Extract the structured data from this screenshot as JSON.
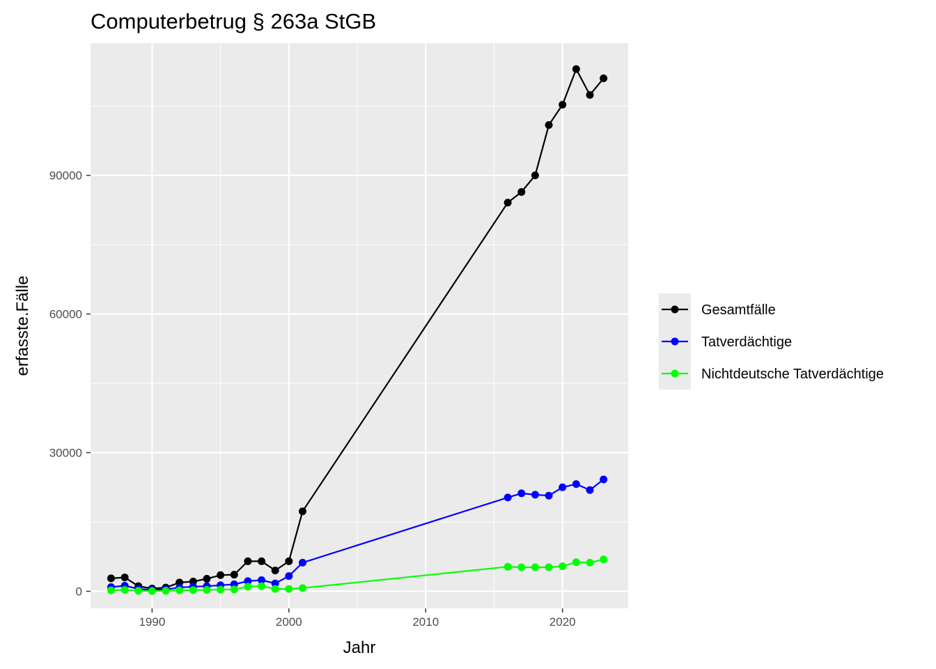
{
  "chart_data": {
    "type": "line",
    "title": "Computerbetrug § 263a StGB",
    "xlabel": "Jahr",
    "ylabel": "erfasste.Fälle",
    "xlim": [
      1985.5,
      2024.8
    ],
    "ylim": [
      -3700,
      118600
    ],
    "x_ticks": [
      1990,
      2000,
      2010,
      2020
    ],
    "x_tick_labels": [
      "1990",
      "2000",
      "2010",
      "2020"
    ],
    "y_ticks": [
      0,
      30000,
      60000,
      90000
    ],
    "y_tick_labels": [
      "0",
      "30000",
      "60000",
      "90000"
    ],
    "grid": true,
    "legend_position": "right",
    "x": [
      1987,
      1988,
      1989,
      1990,
      1991,
      1992,
      1993,
      1994,
      1995,
      1996,
      1997,
      1998,
      1999,
      2000,
      2001,
      2016,
      2017,
      2018,
      2019,
      2020,
      2021,
      2022,
      2023
    ],
    "series": [
      {
        "name": "Gesamtfälle",
        "color": "#000000",
        "values": [
          2800,
          3000,
          1100,
          600,
          800,
          1900,
          2100,
          2700,
          3500,
          3600,
          6500,
          6500,
          4500,
          6500,
          17300,
          84100,
          86400,
          90000,
          100900,
          105300,
          113000,
          107400,
          111000
        ]
      },
      {
        "name": "Tatverdächtige",
        "color": "#0000ff",
        "values": [
          900,
          1200,
          500,
          300,
          400,
          800,
          1000,
          1100,
          1300,
          1500,
          2200,
          2400,
          1700,
          3300,
          6200,
          20300,
          21200,
          20900,
          20700,
          22500,
          23200,
          21900,
          24200
        ]
      },
      {
        "name": "Nichtdeutsche Tatverdächtige",
        "color": "#00ff00",
        "values": [
          200,
          300,
          100,
          50,
          100,
          200,
          250,
          300,
          350,
          400,
          1000,
          1100,
          500,
          500,
          700,
          5300,
          5200,
          5200,
          5200,
          5400,
          6300,
          6200,
          6900
        ]
      }
    ]
  }
}
